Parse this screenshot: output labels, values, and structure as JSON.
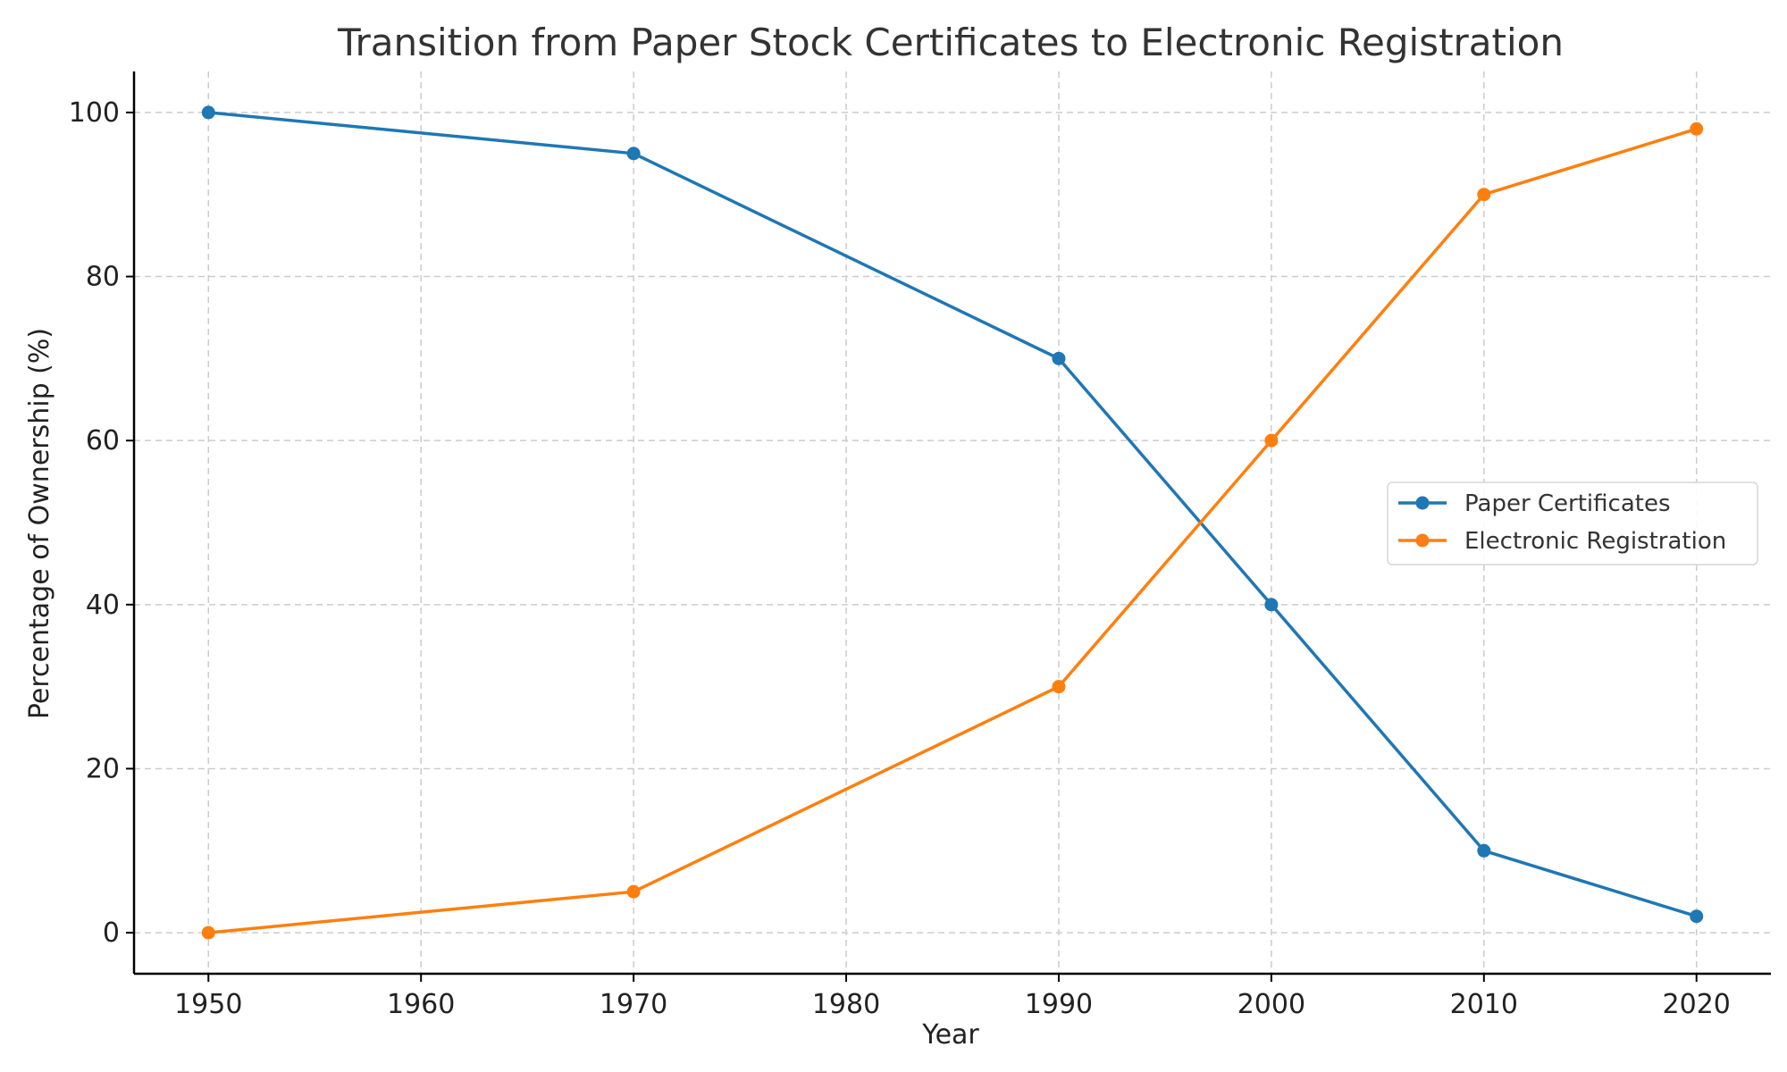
{
  "chart_data": {
    "type": "line",
    "title": "Transition from Paper Stock Certificates to Electronic Registration",
    "xlabel": "Year",
    "ylabel": "Percentage of Ownership (%)",
    "x": [
      1950,
      1970,
      1990,
      2000,
      2010,
      2020
    ],
    "xlim": [
      1946.5,
      2023.5
    ],
    "ylim": [
      -5,
      105
    ],
    "xticks": [
      1950,
      1960,
      1970,
      1980,
      1990,
      2000,
      2010,
      2020
    ],
    "yticks": [
      0,
      20,
      40,
      60,
      80,
      100
    ],
    "grid": true,
    "legend_position": "center-right",
    "series": [
      {
        "name": "Paper Certificates",
        "color": "#1f77b4",
        "values": [
          100,
          95,
          70,
          40,
          10,
          2
        ]
      },
      {
        "name": "Electronic Registration",
        "color": "#ff7f0e",
        "values": [
          0,
          5,
          30,
          60,
          90,
          98
        ]
      }
    ]
  }
}
